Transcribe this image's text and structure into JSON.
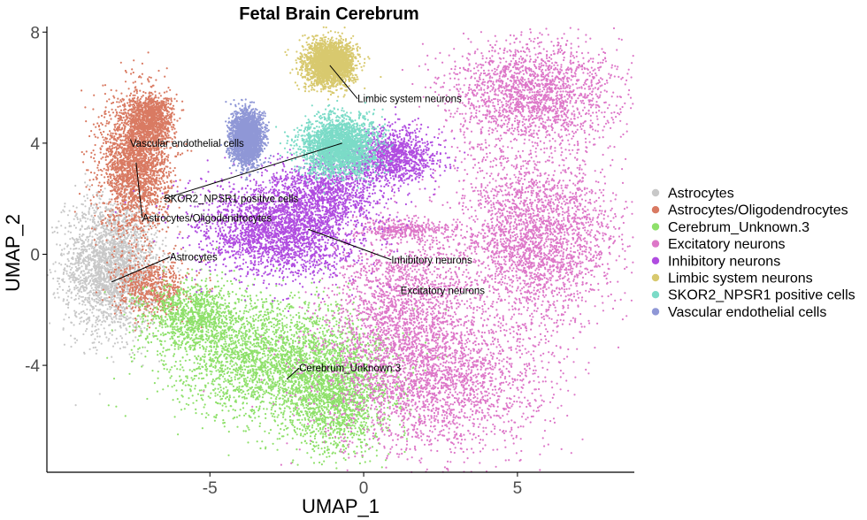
{
  "chart_data": {
    "type": "scatter",
    "title": "Fetal Brain Cerebrum",
    "xlabel": "UMAP_1",
    "ylabel": "UMAP_2",
    "xlim": [
      -10.3,
      8.8
    ],
    "ylim": [
      -7.85,
      8.2
    ],
    "xticks": [
      -5,
      0,
      5
    ],
    "yticks": [
      -4,
      0,
      4,
      8
    ],
    "xtick_labels": [
      "-5",
      "0",
      "5"
    ],
    "ytick_labels": [
      "-4",
      "0",
      "4",
      "8"
    ],
    "grid": false,
    "legend_position": "right",
    "series": [
      {
        "name": "Astrocytes",
        "color": "#c8c8c8",
        "clusters": [
          {
            "cx": -8.2,
            "cy": -0.4,
            "sx": 0.75,
            "sy": 1.2,
            "weight": 1.0
          }
        ],
        "label": "Astrocytes",
        "label_x": -6.3,
        "label_y": -0.1,
        "anchor_x": -8.2,
        "anchor_y": -1.0
      },
      {
        "name": "Astrocytes/Oligodendrocytes",
        "color": "#d97a62",
        "clusters": [
          {
            "cx": -7.4,
            "cy": 3.3,
            "sx": 0.55,
            "sy": 1.2,
            "weight": 1.0
          },
          {
            "cx": -6.9,
            "cy": 4.9,
            "sx": 0.35,
            "sy": 0.4,
            "weight": 0.35
          },
          {
            "cx": -6.9,
            "cy": -1.2,
            "sx": 0.6,
            "sy": 0.5,
            "weight": 0.25
          }
        ],
        "label": "Astrocytes/Oligodendrocytes",
        "label_x": -7.2,
        "label_y": 1.3,
        "anchor_x": -7.4,
        "anchor_y": 3.3
      },
      {
        "name": "Cerebrum_Unknown.3",
        "color": "#8ee06a",
        "clusters": [
          {
            "cx": -2.8,
            "cy": -3.8,
            "sx": 1.7,
            "sy": 1.05,
            "weight": 1.0
          },
          {
            "cx": -0.9,
            "cy": -5.2,
            "sx": 0.9,
            "sy": 1.0,
            "weight": 0.6
          },
          {
            "cx": -5.5,
            "cy": -2.2,
            "sx": 0.8,
            "sy": 0.6,
            "weight": 0.4
          }
        ],
        "label": "Cerebrum_Unknown.3",
        "label_x": -2.1,
        "label_y": -4.1,
        "anchor_x": -2.5,
        "anchor_y": -4.5
      },
      {
        "name": "Excitatory neurons",
        "color": "#dd77c8",
        "clusters": [
          {
            "cx": 5.6,
            "cy": 0.6,
            "sx": 1.3,
            "sy": 1.5,
            "weight": 1.0
          },
          {
            "cx": 5.5,
            "cy": 5.8,
            "sx": 1.4,
            "sy": 0.95,
            "weight": 0.75
          },
          {
            "cx": 2.2,
            "cy": -4.5,
            "sx": 1.8,
            "sy": 1.4,
            "weight": 1.0
          },
          {
            "cx": 1.2,
            "cy": -1.5,
            "sx": 1.1,
            "sy": 1.3,
            "weight": 0.55
          },
          {
            "cx": 1.3,
            "cy": 0.9,
            "sx": 0.8,
            "sy": 0.18,
            "weight": 0.12
          }
        ],
        "label": "Excitatory neurons",
        "label_x": 1.2,
        "label_y": -1.3,
        "anchor_x": 1.2,
        "anchor_y": -1.3
      },
      {
        "name": "Inhibitory neurons",
        "color": "#b04ce0",
        "clusters": [
          {
            "cx": -2.7,
            "cy": 0.9,
            "sx": 1.3,
            "sy": 0.85,
            "weight": 1.0
          },
          {
            "cx": 0.9,
            "cy": 3.5,
            "sx": 0.7,
            "sy": 0.5,
            "weight": 0.45
          },
          {
            "cx": -1.1,
            "cy": 2.3,
            "sx": 0.9,
            "sy": 0.6,
            "weight": 0.35
          }
        ],
        "label": "Inhibitory neurons",
        "label_x": 0.9,
        "label_y": -0.2,
        "anchor_x": -1.8,
        "anchor_y": 0.9
      },
      {
        "name": "Limbic system neurons",
        "color": "#d8c96e",
        "clusters": [
          {
            "cx": -1.1,
            "cy": 6.9,
            "sx": 0.4,
            "sy": 0.4,
            "weight": 1.0
          }
        ],
        "label": "Limbic system neurons",
        "label_x": -0.2,
        "label_y": 5.6,
        "anchor_x": -1.1,
        "anchor_y": 6.8
      },
      {
        "name": "SKOR2_NPSR1 positive cells",
        "color": "#7bdbc7",
        "clusters": [
          {
            "cx": -0.8,
            "cy": 3.9,
            "sx": 0.6,
            "sy": 0.5,
            "weight": 1.0
          }
        ],
        "label": "SKOR2_NPSR1 positive cells",
        "label_x": -6.5,
        "label_y": 2.0,
        "anchor_x": -0.7,
        "anchor_y": 4.0
      },
      {
        "name": "Vascular endothelial cells",
        "color": "#8f97d6",
        "clusters": [
          {
            "cx": -3.8,
            "cy": 4.2,
            "sx": 0.25,
            "sy": 0.45,
            "weight": 1.0
          }
        ],
        "label": "Vascular endothelial cells",
        "label_x": -7.6,
        "label_y": 4.0,
        "anchor_x": -7.6,
        "anchor_y": 4.0
      }
    ]
  }
}
